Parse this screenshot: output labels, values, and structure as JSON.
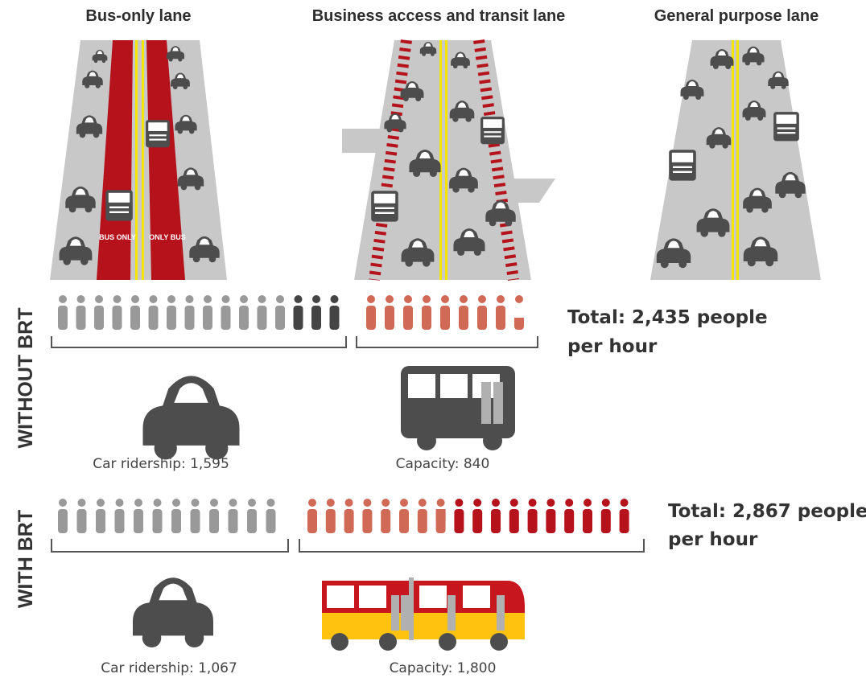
{
  "lanes": [
    {
      "title": "Bus-only lane",
      "markings": [
        "BUS ONLY",
        "ONLY BUS"
      ]
    },
    {
      "title": "Business access and transit lane"
    },
    {
      "title": "General purpose lane"
    }
  ],
  "scenarios": [
    {
      "label": "WITHOUT BRT",
      "total": [
        "Total: 2,435 people",
        "per hour"
      ],
      "car": "Car ridership: 1,595",
      "transit": "Capacity: 840"
    },
    {
      "label": "WITH BRT",
      "total": [
        "Total: 2,867 people",
        "per hour"
      ],
      "car": "Car ridership: 1,067",
      "transit": "Capacity: 1,800"
    }
  ]
}
